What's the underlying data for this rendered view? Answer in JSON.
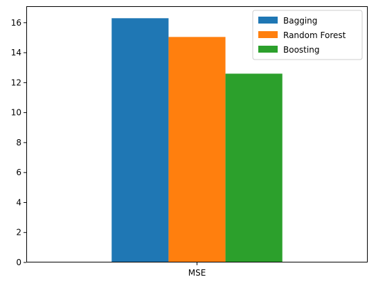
{
  "chart_data": {
    "type": "bar",
    "categories": [
      "MSE"
    ],
    "series": [
      {
        "name": "Bagging",
        "values": [
          16.3
        ]
      },
      {
        "name": "Random Forest",
        "values": [
          15.05
        ]
      },
      {
        "name": "Boosting",
        "values": [
          12.6
        ]
      }
    ],
    "ylim": [
      0,
      17.1
    ],
    "yticks": [
      0,
      2,
      4,
      6,
      8,
      10,
      12,
      14,
      16
    ],
    "colors": [
      "#1f77b4",
      "#ff7f0e",
      "#2ca02c"
    ],
    "grid": false,
    "legend_position": "top-right"
  }
}
